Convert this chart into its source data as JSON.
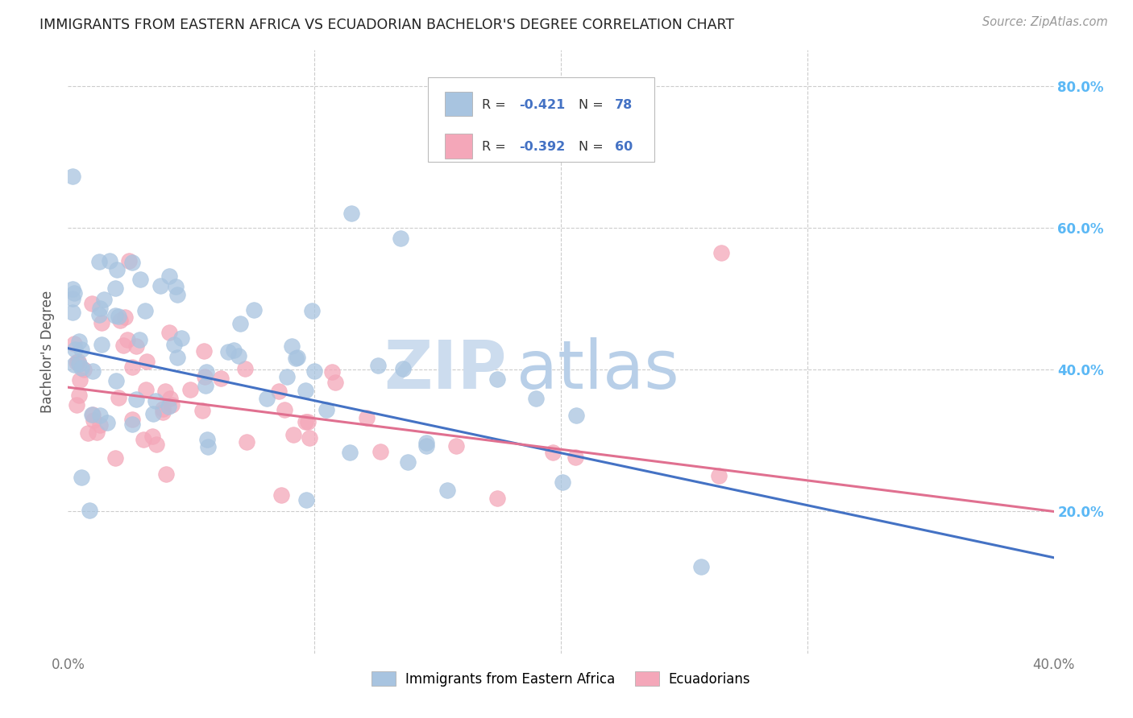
{
  "title": "IMMIGRANTS FROM EASTERN AFRICA VS ECUADORIAN BACHELOR'S DEGREE CORRELATION CHART",
  "source": "Source: ZipAtlas.com",
  "watermark_zip": "ZIP",
  "watermark_atlas": "atlas",
  "ylabel": "Bachelor's Degree",
  "ylim": [
    0.0,
    0.85
  ],
  "xlim": [
    0.0,
    0.4
  ],
  "color_blue": "#a8c4e0",
  "color_pink": "#f4a7b9",
  "line_color_blue": "#4472c4",
  "line_color_pink": "#e07090",
  "right_tick_color": "#5bb8f5",
  "grid_color": "#cccccc",
  "background": "#ffffff",
  "blue_line_x0": 0.0,
  "blue_line_y0": 0.43,
  "blue_line_x1": 0.4,
  "blue_line_y1": 0.135,
  "pink_line_x0": 0.0,
  "pink_line_y0": 0.375,
  "pink_line_x1": 0.4,
  "pink_line_y1": 0.2
}
